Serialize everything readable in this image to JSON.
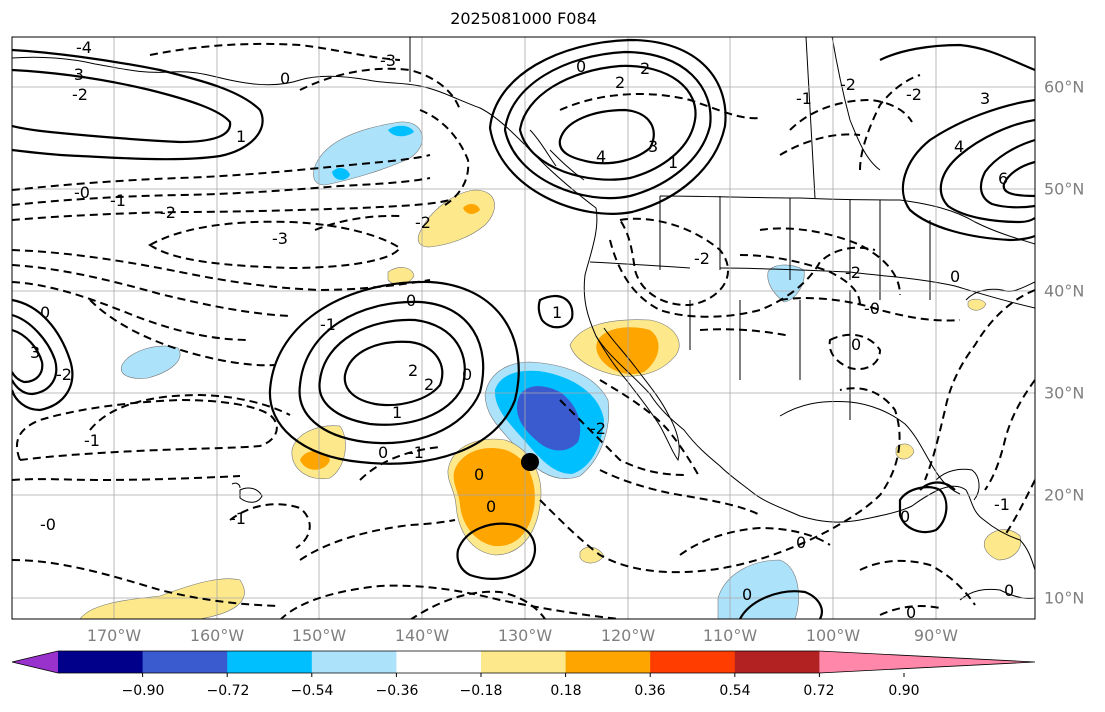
{
  "title": "2025081000 F084",
  "lon_labels": [
    "170°W",
    "160°W",
    "150°W",
    "140°W",
    "130°W",
    "120°W",
    "110°W",
    "100°W",
    "90°W"
  ],
  "lat_labels": [
    "60°N",
    "50°N",
    "40°N",
    "30°N",
    "20°N",
    "10°N"
  ],
  "colorbar": {
    "ticks": [
      "−0.90",
      "−0.72",
      "−0.54",
      "−0.36",
      "−0.18",
      "0.18",
      "0.36",
      "0.54",
      "0.72",
      "0.90"
    ],
    "colors": [
      "#9932cc",
      "#00008b",
      "#3a5bd0",
      "#00bfff",
      "#ade2fb",
      "#ffffff",
      "#fde98b",
      "#ffa500",
      "#ff3d00",
      "#b22222",
      "#ff88aa"
    ]
  },
  "contour_labels": [
    "-4",
    "-3",
    "-2",
    "-1",
    "0",
    "1",
    "2",
    "3",
    "4",
    "-0",
    "6"
  ],
  "marker": "storm-center"
}
